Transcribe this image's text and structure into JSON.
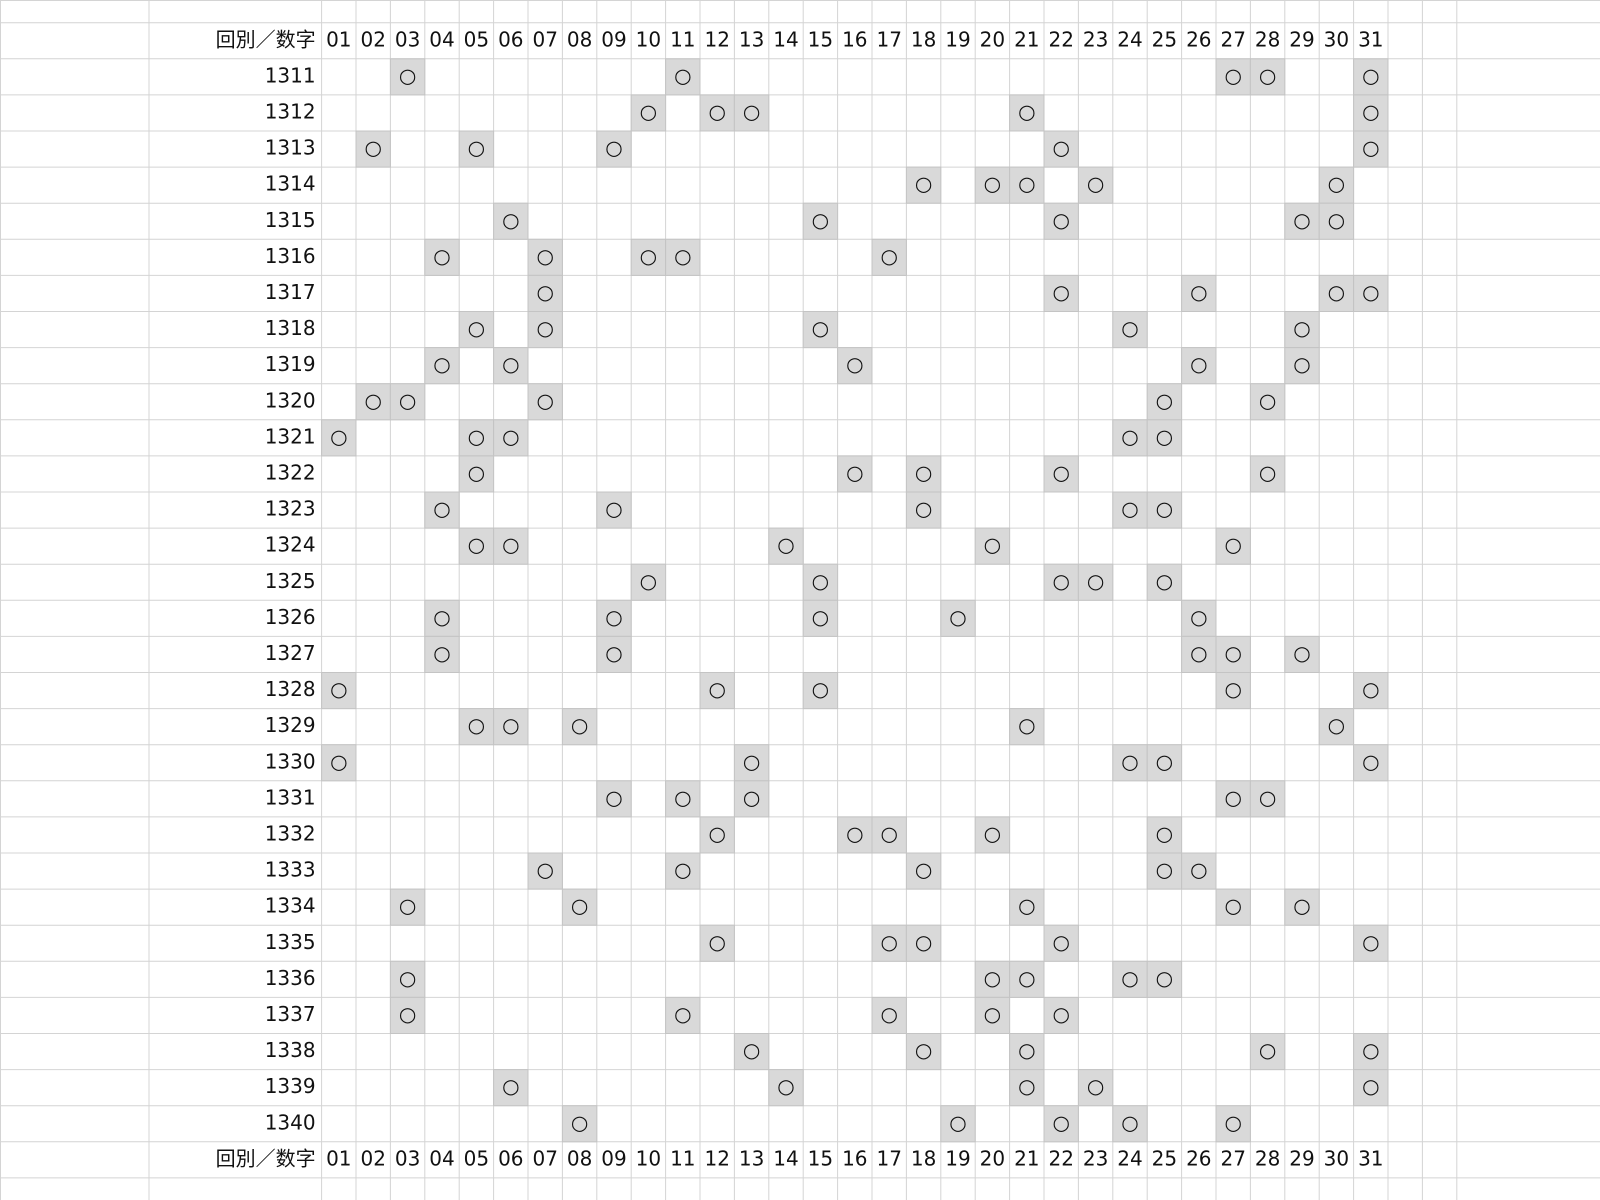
{
  "table": {
    "header": {
      "label": "回別／数字",
      "columns": [
        "01",
        "02",
        "03",
        "04",
        "05",
        "06",
        "07",
        "08",
        "09",
        "10",
        "11",
        "12",
        "13",
        "14",
        "15",
        "16",
        "17",
        "18",
        "19",
        "20",
        "21",
        "22",
        "23",
        "24",
        "25",
        "26",
        "27",
        "28",
        "29",
        "30",
        "31"
      ]
    },
    "rows": [
      {
        "label": "1311",
        "marks": [
          {
            "column": "03",
            "text": "○"
          },
          {
            "column": "11",
            "text": "○"
          },
          {
            "column": "27",
            "text": "○"
          },
          {
            "column": "28",
            "text": "○"
          },
          {
            "column": "31",
            "text": "○"
          }
        ]
      },
      {
        "label": "1312",
        "marks": [
          {
            "column": "10",
            "text": "○"
          },
          {
            "column": "12",
            "text": "○"
          },
          {
            "column": "13",
            "text": "○"
          },
          {
            "column": "21",
            "text": "○"
          },
          {
            "column": "31",
            "text": "○"
          }
        ]
      },
      {
        "label": "1313",
        "marks": [
          {
            "column": "02",
            "text": "○"
          },
          {
            "column": "05",
            "text": "○"
          },
          {
            "column": "09",
            "text": "○"
          },
          {
            "column": "22",
            "text": "○"
          },
          {
            "column": "31",
            "text": "○"
          }
        ]
      },
      {
        "label": "1314",
        "marks": [
          {
            "column": "18",
            "text": "○"
          },
          {
            "column": "20",
            "text": "○"
          },
          {
            "column": "21",
            "text": "○"
          },
          {
            "column": "23",
            "text": "○"
          },
          {
            "column": "30",
            "text": "○"
          }
        ]
      },
      {
        "label": "1315",
        "marks": [
          {
            "column": "06",
            "text": "○"
          },
          {
            "column": "15",
            "text": "○"
          },
          {
            "column": "22",
            "text": "○"
          },
          {
            "column": "29",
            "text": "○"
          },
          {
            "column": "30",
            "text": "○"
          }
        ]
      },
      {
        "label": "1316",
        "marks": [
          {
            "column": "04",
            "text": "○"
          },
          {
            "column": "07",
            "text": "○"
          },
          {
            "column": "10",
            "text": "○"
          },
          {
            "column": "11",
            "text": "○"
          },
          {
            "column": "17",
            "text": "○"
          }
        ]
      },
      {
        "label": "1317",
        "marks": [
          {
            "column": "07",
            "text": "○"
          },
          {
            "column": "22",
            "text": "○"
          },
          {
            "column": "26",
            "text": "○"
          },
          {
            "column": "30",
            "text": "○"
          },
          {
            "column": "31",
            "text": "○"
          }
        ]
      },
      {
        "label": "1318",
        "marks": [
          {
            "column": "05",
            "text": "○"
          },
          {
            "column": "07",
            "text": "○"
          },
          {
            "column": "15",
            "text": "○"
          },
          {
            "column": "24",
            "text": "○"
          },
          {
            "column": "29",
            "text": "○"
          }
        ]
      },
      {
        "label": "1319",
        "marks": [
          {
            "column": "04",
            "text": "○"
          },
          {
            "column": "06",
            "text": "○"
          },
          {
            "column": "16",
            "text": "○"
          },
          {
            "column": "26",
            "text": "○"
          },
          {
            "column": "29",
            "text": "○"
          }
        ]
      },
      {
        "label": "1320",
        "marks": [
          {
            "column": "02",
            "text": "○"
          },
          {
            "column": "03",
            "text": "○"
          },
          {
            "column": "07",
            "text": "○"
          },
          {
            "column": "25",
            "text": "○"
          },
          {
            "column": "28",
            "text": "○"
          }
        ]
      },
      {
        "label": "1321",
        "marks": [
          {
            "column": "01",
            "text": "○"
          },
          {
            "column": "05",
            "text": "○"
          },
          {
            "column": "06",
            "text": "○"
          },
          {
            "column": "24",
            "text": "○"
          },
          {
            "column": "25",
            "text": "○"
          }
        ]
      },
      {
        "label": "1322",
        "marks": [
          {
            "column": "05",
            "text": "○"
          },
          {
            "column": "16",
            "text": "○"
          },
          {
            "column": "18",
            "text": "○"
          },
          {
            "column": "22",
            "text": "○"
          },
          {
            "column": "28",
            "text": "○"
          }
        ]
      },
      {
        "label": "1323",
        "marks": [
          {
            "column": "04",
            "text": "○"
          },
          {
            "column": "09",
            "text": "○"
          },
          {
            "column": "18",
            "text": "○"
          },
          {
            "column": "24",
            "text": "○"
          },
          {
            "column": "25",
            "text": "○"
          }
        ]
      },
      {
        "label": "1324",
        "marks": [
          {
            "column": "05",
            "text": "○"
          },
          {
            "column": "06",
            "text": "○"
          },
          {
            "column": "14",
            "text": "○"
          },
          {
            "column": "20",
            "text": "○"
          },
          {
            "column": "27",
            "text": "○"
          }
        ]
      },
      {
        "label": "1325",
        "marks": [
          {
            "column": "10",
            "text": "○"
          },
          {
            "column": "15",
            "text": "○"
          },
          {
            "column": "22",
            "text": "○"
          },
          {
            "column": "23",
            "text": "○"
          },
          {
            "column": "25",
            "text": "○"
          }
        ]
      },
      {
        "label": "1326",
        "marks": [
          {
            "column": "04",
            "text": "○"
          },
          {
            "column": "09",
            "text": "○"
          },
          {
            "column": "15",
            "text": "○"
          },
          {
            "column": "19",
            "text": "○"
          },
          {
            "column": "26",
            "text": "○"
          }
        ]
      },
      {
        "label": "1327",
        "marks": [
          {
            "column": "04",
            "text": "○"
          },
          {
            "column": "09",
            "text": "○"
          },
          {
            "column": "26",
            "text": "○"
          },
          {
            "column": "27",
            "text": "○"
          },
          {
            "column": "29",
            "text": "○"
          }
        ]
      },
      {
        "label": "1328",
        "marks": [
          {
            "column": "01",
            "text": "○"
          },
          {
            "column": "12",
            "text": "○"
          },
          {
            "column": "15",
            "text": "○"
          },
          {
            "column": "27",
            "text": "○"
          },
          {
            "column": "31",
            "text": "○"
          }
        ]
      },
      {
        "label": "1329",
        "marks": [
          {
            "column": "05",
            "text": "○"
          },
          {
            "column": "06",
            "text": "○"
          },
          {
            "column": "08",
            "text": "○"
          },
          {
            "column": "21",
            "text": "○"
          },
          {
            "column": "30",
            "text": "○"
          }
        ]
      },
      {
        "label": "1330",
        "marks": [
          {
            "column": "01",
            "text": "○"
          },
          {
            "column": "13",
            "text": "○"
          },
          {
            "column": "24",
            "text": "○"
          },
          {
            "column": "25",
            "text": "○"
          },
          {
            "column": "31",
            "text": "○"
          }
        ]
      },
      {
        "label": "1331",
        "marks": [
          {
            "column": "09",
            "text": "○"
          },
          {
            "column": "11",
            "text": "○"
          },
          {
            "column": "13",
            "text": "○"
          },
          {
            "column": "27",
            "text": "○"
          },
          {
            "column": "28",
            "text": "○"
          }
        ]
      },
      {
        "label": "1332",
        "marks": [
          {
            "column": "12",
            "text": "○"
          },
          {
            "column": "16",
            "text": "○"
          },
          {
            "column": "17",
            "text": "○"
          },
          {
            "column": "20",
            "text": "○"
          },
          {
            "column": "25",
            "text": "○"
          }
        ]
      },
      {
        "label": "1333",
        "marks": [
          {
            "column": "07",
            "text": "○"
          },
          {
            "column": "11",
            "text": "○"
          },
          {
            "column": "18",
            "text": "○"
          },
          {
            "column": "25",
            "text": "○"
          },
          {
            "column": "26",
            "text": "○"
          }
        ]
      },
      {
        "label": "1334",
        "marks": [
          {
            "column": "03",
            "text": "○"
          },
          {
            "column": "08",
            "text": "○"
          },
          {
            "column": "21",
            "text": "○"
          },
          {
            "column": "27",
            "text": "○"
          },
          {
            "column": "29",
            "text": "○"
          }
        ]
      },
      {
        "label": "1335",
        "marks": [
          {
            "column": "12",
            "text": "○"
          },
          {
            "column": "17",
            "text": "○"
          },
          {
            "column": "18",
            "text": "○"
          },
          {
            "column": "22",
            "text": "○"
          },
          {
            "column": "31",
            "text": "○"
          }
        ]
      },
      {
        "label": "1336",
        "marks": [
          {
            "column": "03",
            "text": "○"
          },
          {
            "column": "20",
            "text": "○"
          },
          {
            "column": "21",
            "text": "○"
          },
          {
            "column": "24",
            "text": "○"
          },
          {
            "column": "25",
            "text": "○"
          }
        ]
      },
      {
        "label": "1337",
        "marks": [
          {
            "column": "03",
            "text": "○"
          },
          {
            "column": "11",
            "text": "○"
          },
          {
            "column": "17",
            "text": "○"
          },
          {
            "column": "20",
            "text": "○"
          },
          {
            "column": "22",
            "text": "○"
          }
        ]
      },
      {
        "label": "1338",
        "marks": [
          {
            "column": "13",
            "text": "○"
          },
          {
            "column": "18",
            "text": "○"
          },
          {
            "column": "21",
            "text": "○"
          },
          {
            "column": "28",
            "text": "○"
          },
          {
            "column": "31",
            "text": "○"
          }
        ]
      },
      {
        "label": "1339",
        "marks": [
          {
            "column": "06",
            "text": "○"
          },
          {
            "column": "14",
            "text": "○"
          },
          {
            "column": "21",
            "text": "○"
          },
          {
            "column": "23",
            "text": "○"
          },
          {
            "column": "31",
            "text": "○"
          }
        ]
      },
      {
        "label": "1340",
        "marks": [
          {
            "column": "08",
            "text": "○"
          },
          {
            "column": "19",
            "text": "○"
          },
          {
            "column": "22",
            "text": "○"
          },
          {
            "column": "24",
            "text": "○"
          },
          {
            "column": "27",
            "text": "○"
          }
        ]
      }
    ],
    "footer": {
      "label": "回別／数字",
      "columns": [
        "01",
        "02",
        "03",
        "04",
        "05",
        "06",
        "07",
        "08",
        "09",
        "10",
        "11",
        "12",
        "13",
        "14",
        "15",
        "16",
        "17",
        "18",
        "19",
        "20",
        "21",
        "22",
        "23",
        "24",
        "25",
        "26",
        "27",
        "28",
        "29",
        "30",
        "31"
      ]
    }
  }
}
